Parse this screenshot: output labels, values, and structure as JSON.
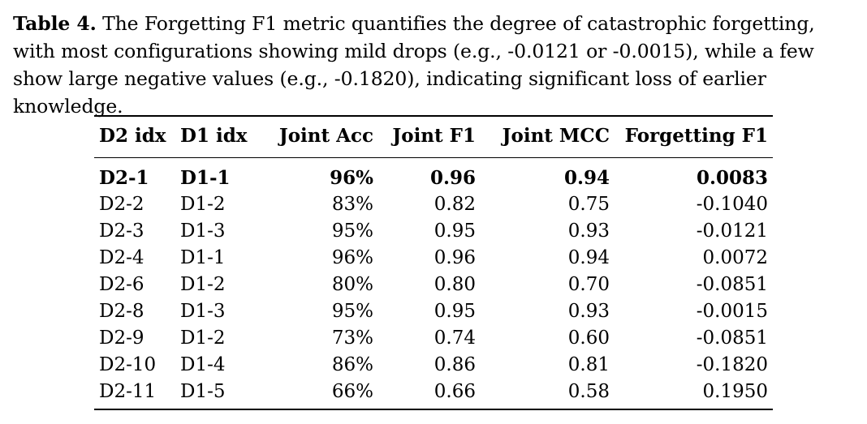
{
  "caption": {
    "label": "Table 4.",
    "text": " The Forgetting F1 metric quantifies the degree of catastrophic forgetting, with most configurations showing mild drops (e.g., -0.0121 or -0.0015), while a few show large negative values (e.g., -0.1820), indicating significant loss of earlier knowledge."
  },
  "table": {
    "headers": [
      "D2 idx",
      "D1 idx",
      "Joint Acc",
      "Joint F1",
      "Joint MCC",
      "Forgetting F1"
    ],
    "rows": [
      [
        "D2-1",
        "D1-1",
        "96%",
        "0.96",
        "0.94",
        "0.0083"
      ],
      [
        "D2-2",
        "D1-2",
        "83%",
        "0.82",
        "0.75",
        "-0.1040"
      ],
      [
        "D2-3",
        "D1-3",
        "95%",
        "0.95",
        "0.93",
        "-0.0121"
      ],
      [
        "D2-4",
        "D1-1",
        "96%",
        "0.96",
        "0.94",
        "0.0072"
      ],
      [
        "D2-6",
        "D1-2",
        "80%",
        "0.80",
        "0.70",
        "-0.0851"
      ],
      [
        "D2-8",
        "D1-3",
        "95%",
        "0.95",
        "0.93",
        "-0.0015"
      ],
      [
        "D2-9",
        "D1-2",
        "73%",
        "0.74",
        "0.60",
        "-0.0851"
      ],
      [
        "D2-10",
        "D1-4",
        "86%",
        "0.86",
        "0.81",
        "-0.1820"
      ],
      [
        "D2-11",
        "D1-5",
        "66%",
        "0.66",
        "0.58",
        "0.1950"
      ]
    ]
  }
}
